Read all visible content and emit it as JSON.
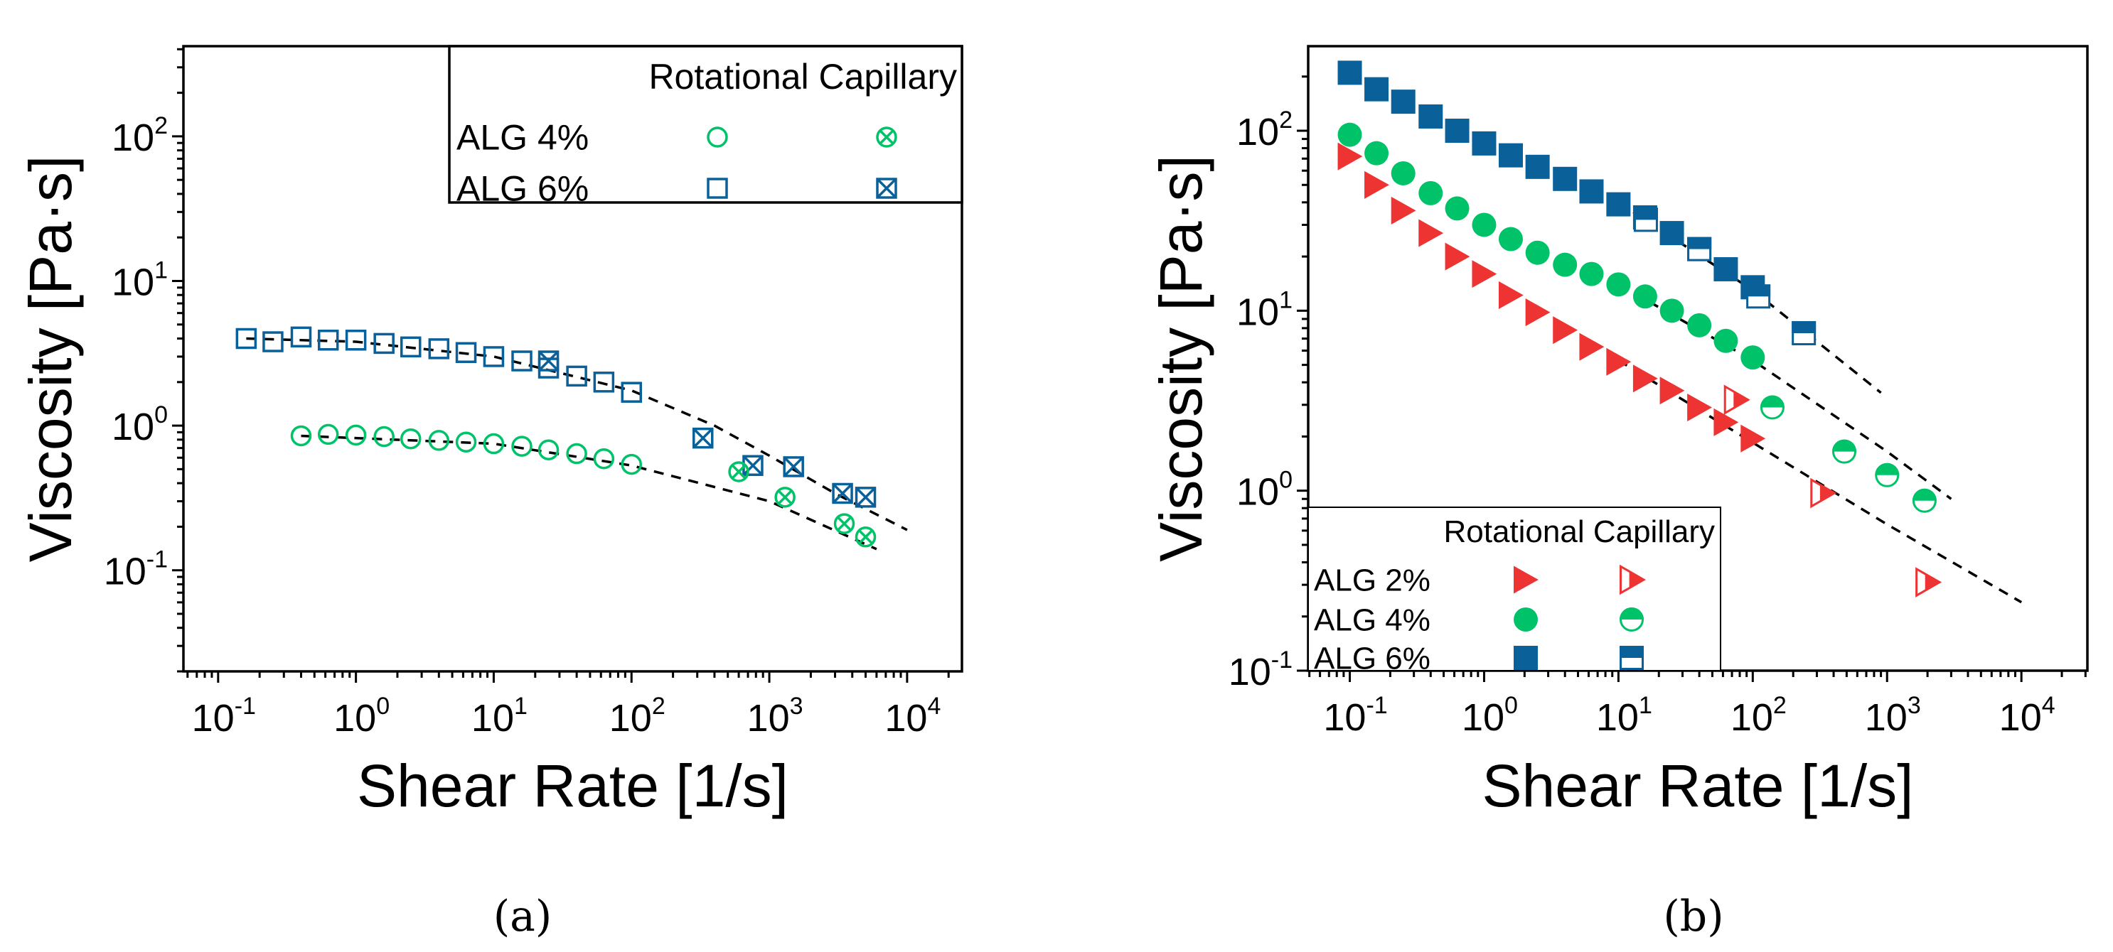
{
  "colors": {
    "green": "#00c268",
    "blue": "#0a6099",
    "red": "#ee3333",
    "fit": "#000000"
  },
  "panel_labels": [
    "(a)",
    "(b)"
  ],
  "chart_data": [
    {
      "type": "scatter",
      "panel": "(a)",
      "xlabel": "Shear Rate [1/s]",
      "ylabel": "Viscosity [Pa·s]",
      "xscale": "log",
      "yscale": "log",
      "xlim": [
        0.056,
        25000
      ],
      "ylim": [
        0.02,
        420
      ],
      "xticks": [
        {
          "base": "10",
          "exp": "-1",
          "value": 0.1
        },
        {
          "base": "10",
          "exp": "0",
          "value": 1
        },
        {
          "base": "10",
          "exp": "1",
          "value": 10
        },
        {
          "base": "10",
          "exp": "2",
          "value": 100
        },
        {
          "base": "10",
          "exp": "3",
          "value": 1000
        },
        {
          "base": "10",
          "exp": "4",
          "value": 10000
        }
      ],
      "yticks": [
        {
          "base": "10",
          "exp": "-1",
          "value": 0.1
        },
        {
          "base": "10",
          "exp": "0",
          "value": 1
        },
        {
          "base": "10",
          "exp": "1",
          "value": 10
        },
        {
          "base": "10",
          "exp": "2",
          "value": 100
        }
      ],
      "legend": {
        "placement": "top-right",
        "header": "Rotational Capillary",
        "rows": [
          {
            "label": "ALG 4%",
            "color": "green",
            "rot": "open-circle",
            "cap": "crossed-circle"
          },
          {
            "label": "ALG 6%",
            "color": "blue",
            "rot": "open-square",
            "cap": "crossed-square"
          }
        ]
      },
      "series": [
        {
          "name": "ALG 6% Rotational",
          "color": "blue",
          "marker": "open-square",
          "x": [
            0.16,
            0.25,
            0.4,
            0.63,
            1,
            1.6,
            2.5,
            4,
            6.3,
            10,
            16,
            25,
            40,
            63,
            100
          ],
          "y": [
            4.0,
            3.8,
            4.1,
            3.9,
            3.9,
            3.7,
            3.5,
            3.4,
            3.2,
            3.0,
            2.8,
            2.5,
            2.2,
            2.0,
            1.7
          ]
        },
        {
          "name": "ALG 6% Capillary",
          "color": "blue",
          "marker": "crossed-square",
          "x": [
            25,
            330,
            760,
            1500,
            3400,
            5000
          ],
          "y": [
            2.8,
            0.82,
            0.53,
            0.52,
            0.34,
            0.32
          ]
        },
        {
          "name": "ALG 4% Rotational",
          "color": "green",
          "marker": "open-circle",
          "x": [
            0.4,
            0.63,
            1,
            1.6,
            2.5,
            4,
            6.3,
            10,
            16,
            25,
            40,
            63,
            100
          ],
          "y": [
            0.85,
            0.87,
            0.86,
            0.84,
            0.81,
            0.79,
            0.77,
            0.75,
            0.72,
            0.68,
            0.64,
            0.59,
            0.54
          ]
        },
        {
          "name": "ALG 4% Capillary",
          "color": "green",
          "marker": "crossed-circle",
          "x": [
            600,
            1300,
            3500,
            5000
          ],
          "y": [
            0.48,
            0.32,
            0.21,
            0.17
          ]
        },
        {
          "name": "ALG 6% fit",
          "color": "fit",
          "marker": "dashed-line",
          "x": [
            0.16,
            1,
            10,
            100,
            400,
            1000,
            3000,
            10000
          ],
          "y": [
            4.0,
            3.8,
            3.0,
            1.75,
            1.0,
            0.62,
            0.34,
            0.19
          ]
        },
        {
          "name": "ALG 4% fit",
          "color": "fit",
          "marker": "dashed-line",
          "x": [
            0.4,
            10,
            100,
            1000,
            6000
          ],
          "y": [
            0.85,
            0.75,
            0.53,
            0.3,
            0.14
          ]
        }
      ]
    },
    {
      "type": "scatter",
      "panel": "(b)",
      "xlabel": "Shear Rate [1/s]",
      "ylabel": "Viscosity [Pa·s]",
      "xscale": "log",
      "yscale": "log",
      "xlim": [
        0.049,
        31000
      ],
      "ylim": [
        0.1,
        295
      ],
      "xticks": [
        {
          "base": "10",
          "exp": "-1",
          "value": 0.1
        },
        {
          "base": "10",
          "exp": "0",
          "value": 1
        },
        {
          "base": "10",
          "exp": "1",
          "value": 10
        },
        {
          "base": "10",
          "exp": "2",
          "value": 100
        },
        {
          "base": "10",
          "exp": "3",
          "value": 1000
        },
        {
          "base": "10",
          "exp": "4",
          "value": 10000
        }
      ],
      "yticks": [
        {
          "base": "10",
          "exp": "-1",
          "value": 0.1
        },
        {
          "base": "10",
          "exp": "0",
          "value": 1
        },
        {
          "base": "10",
          "exp": "1",
          "value": 10
        },
        {
          "base": "10",
          "exp": "2",
          "value": 100
        }
      ],
      "legend": {
        "placement": "bottom-left",
        "header": "Rotational Capillary",
        "rows": [
          {
            "label": "ALG 2%",
            "color": "red",
            "rot": "filled-triangle",
            "cap": "half-triangle"
          },
          {
            "label": "ALG 4%",
            "color": "green",
            "rot": "filled-circle",
            "cap": "half-circle"
          },
          {
            "label": "ALG 6%",
            "color": "blue",
            "rot": "filled-square",
            "cap": "half-square"
          }
        ]
      },
      "series": [
        {
          "name": "ALG 6% Rotational",
          "color": "blue",
          "marker": "filled-square",
          "x": [
            0.1,
            0.158,
            0.25,
            0.4,
            0.63,
            1,
            1.58,
            2.5,
            4,
            6.3,
            10,
            15.8,
            25,
            40,
            63,
            100
          ],
          "y": [
            210,
            170,
            145,
            120,
            100,
            85,
            73,
            63,
            54,
            46,
            39,
            33,
            27,
            22,
            17,
            13.5
          ]
        },
        {
          "name": "ALG 6% Capillary",
          "color": "blue",
          "marker": "half-square",
          "x": [
            16,
            40,
            110,
            240
          ],
          "y": [
            32,
            22,
            12,
            7.5
          ]
        },
        {
          "name": "ALG 4% Rotational",
          "color": "green",
          "marker": "filled-circle",
          "x": [
            0.1,
            0.158,
            0.25,
            0.4,
            0.63,
            1,
            1.58,
            2.5,
            4,
            6.3,
            10,
            15.8,
            25,
            40,
            63,
            100
          ],
          "y": [
            95,
            75,
            58,
            45,
            37,
            30,
            25,
            21,
            18,
            16,
            14,
            12,
            10,
            8.3,
            6.8,
            5.5
          ]
        },
        {
          "name": "ALG 4% Capillary",
          "color": "green",
          "marker": "half-circle",
          "x": [
            140,
            480,
            1000,
            1900
          ],
          "y": [
            2.9,
            1.65,
            1.22,
            0.88
          ]
        },
        {
          "name": "ALG 2% Rotational",
          "color": "red",
          "marker": "filled-triangle",
          "x": [
            0.1,
            0.158,
            0.25,
            0.4,
            0.63,
            1,
            1.58,
            2.5,
            4,
            6.3,
            10,
            15.8,
            25,
            40,
            63,
            100
          ],
          "y": [
            72,
            50,
            36,
            27,
            20,
            16,
            12.2,
            9.8,
            7.8,
            6.3,
            5.2,
            4.2,
            3.6,
            2.9,
            2.4,
            1.95
          ]
        },
        {
          "name": "ALG 2% Capillary",
          "color": "red",
          "marker": "half-triangle",
          "x": [
            75,
            330,
            2000
          ],
          "y": [
            3.2,
            0.97,
            0.31
          ]
        },
        {
          "name": "ALG 6% fit",
          "color": "fit",
          "marker": "dashed-line",
          "x": [
            10,
            100,
            900
          ],
          "y": [
            40,
            13,
            3.5
          ]
        },
        {
          "name": "ALG 4% fit",
          "color": "fit",
          "marker": "dashed-line",
          "x": [
            10,
            100,
            1000,
            3000
          ],
          "y": [
            14,
            5.3,
            1.65,
            0.9
          ]
        },
        {
          "name": "ALG 2% fit",
          "color": "fit",
          "marker": "dashed-line",
          "x": [
            10,
            100,
            1000,
            10000
          ],
          "y": [
            5.3,
            1.85,
            0.65,
            0.24
          ]
        }
      ]
    }
  ]
}
